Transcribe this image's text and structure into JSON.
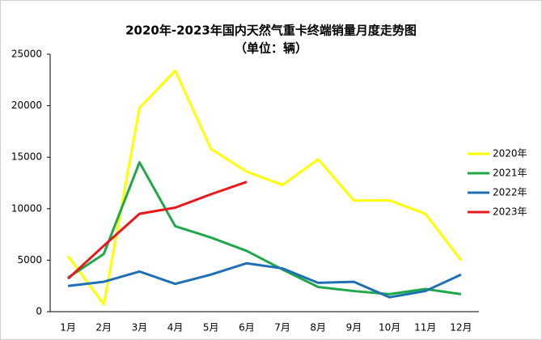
{
  "chart_data": {
    "type": "line",
    "title": "2020年-2023年国内天然气重卡终端销量月度走势图",
    "subtitle": "（单位：辆）",
    "categories": [
      "1月",
      "2月",
      "3月",
      "4月",
      "5月",
      "6月",
      "7月",
      "8月",
      "9月",
      "10月",
      "11月",
      "12月"
    ],
    "series": [
      {
        "name": "2020年",
        "color": "#ffff00",
        "values": [
          5400,
          700,
          19800,
          23400,
          15800,
          13600,
          12300,
          14800,
          10800,
          10800,
          9500,
          5000
        ]
      },
      {
        "name": "2021年",
        "color": "#1fa84a",
        "values": [
          3300,
          5600,
          14500,
          8300,
          7200,
          5900,
          4100,
          2400,
          2000,
          1700,
          2200,
          1700
        ]
      },
      {
        "name": "2022年",
        "color": "#1f6fb5",
        "values": [
          2500,
          2900,
          3900,
          2700,
          3600,
          4700,
          4200,
          2800,
          2900,
          1400,
          2000,
          3600
        ]
      },
      {
        "name": "2023年",
        "color": "#e8191c",
        "values": [
          3200,
          6400,
          9500,
          10100,
          11400,
          12600,
          null,
          null,
          null,
          null,
          null,
          null
        ]
      }
    ],
    "ylim": [
      0,
      25000
    ],
    "yticks": [
      0,
      5000,
      10000,
      15000,
      20000,
      25000
    ],
    "grid": false,
    "legend": "right"
  }
}
